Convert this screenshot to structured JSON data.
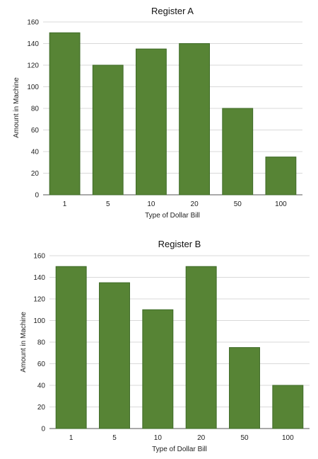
{
  "chart_data": [
    {
      "type": "bar",
      "title": "Register A",
      "xlabel": "Type of Dollar Bill",
      "ylabel": "Amount in Machine",
      "categories": [
        "1",
        "5",
        "10",
        "20",
        "50",
        "100"
      ],
      "values": [
        150,
        120,
        135,
        140,
        80,
        35
      ],
      "ylim": [
        0,
        160
      ],
      "yticks": [
        0,
        20,
        40,
        60,
        80,
        100,
        120,
        140,
        160
      ],
      "grid": true,
      "bar_color": "#578435"
    },
    {
      "type": "bar",
      "title": "Register B",
      "xlabel": "Type of Dollar Bill",
      "ylabel": "Amount in Machine",
      "categories": [
        "1",
        "5",
        "10",
        "20",
        "50",
        "100"
      ],
      "values": [
        150,
        135,
        110,
        150,
        75,
        40
      ],
      "ylim": [
        0,
        160
      ],
      "yticks": [
        0,
        20,
        40,
        60,
        80,
        100,
        120,
        140,
        160
      ],
      "grid": true,
      "bar_color": "#578435"
    }
  ]
}
